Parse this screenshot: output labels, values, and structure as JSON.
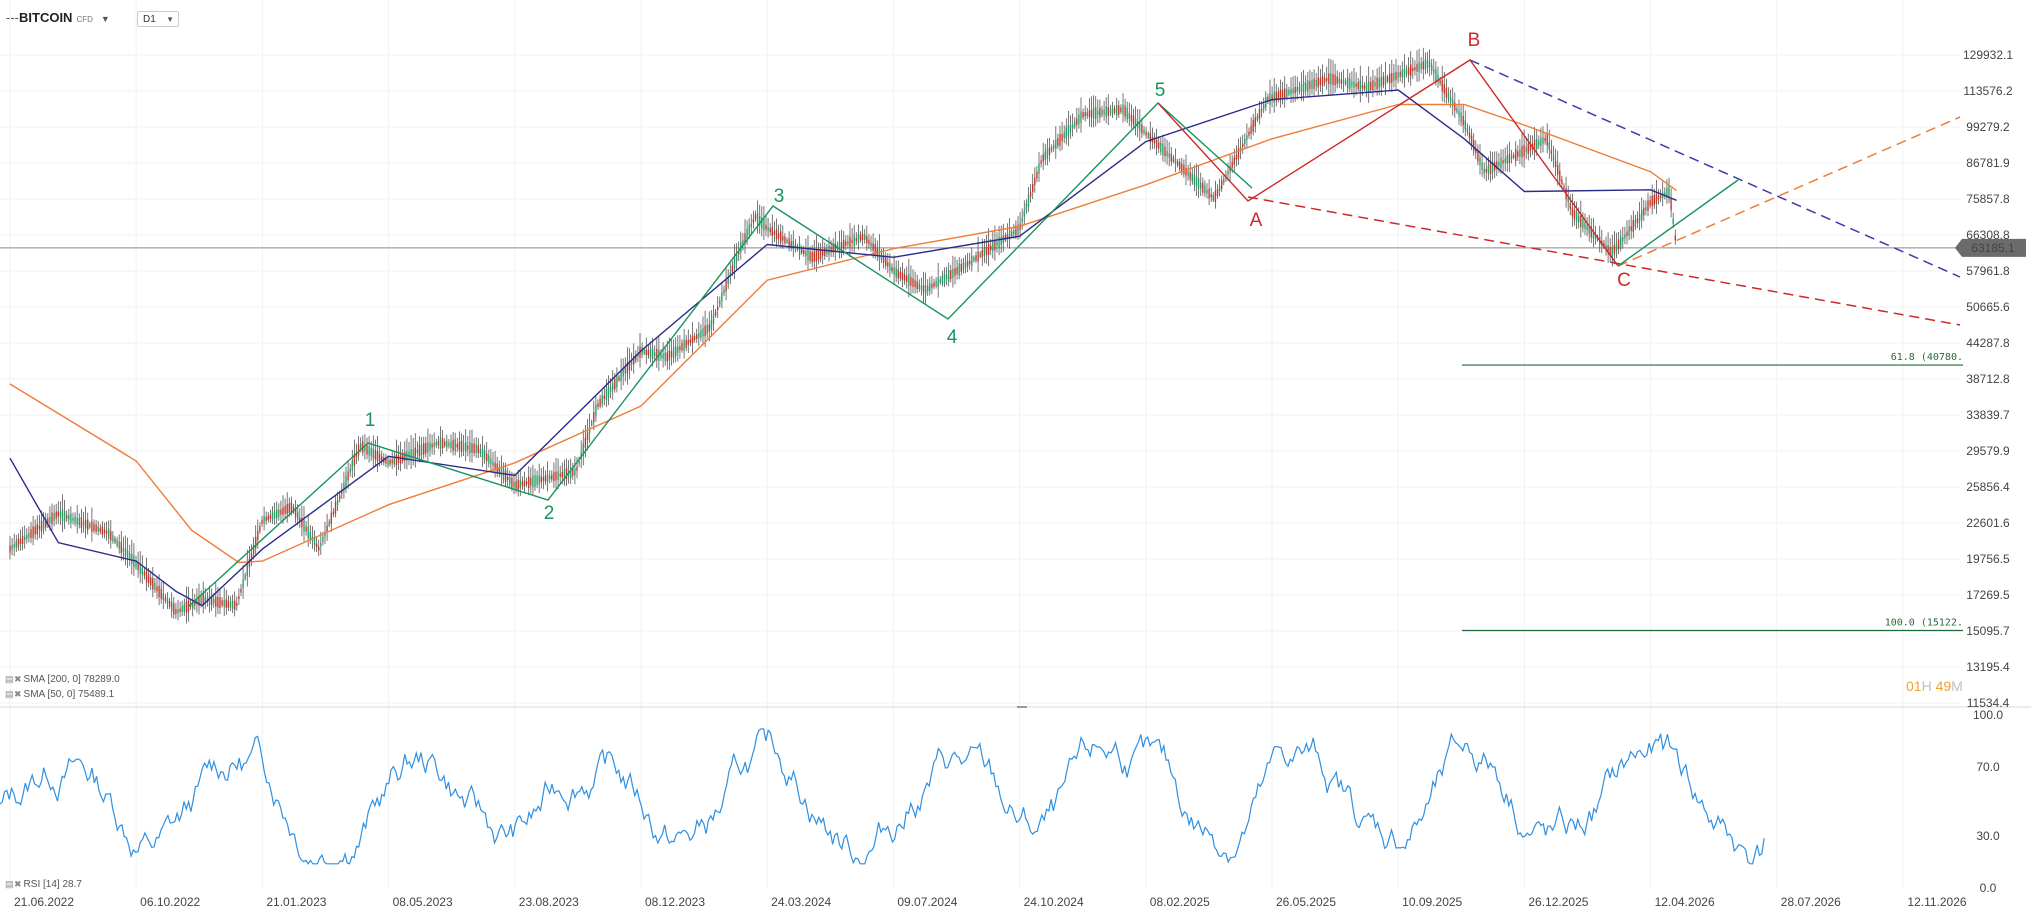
{
  "header": {
    "symbol_dash": "---",
    "symbol": "BITCOIN",
    "symbol_badge": "CFD",
    "symbol_caret": "▼",
    "timeframe": "D1",
    "timeframe_caret": "▼"
  },
  "legend": {
    "sma200": "SMA [200, 0] 78289.0",
    "sma50": "SMA [50, 0] 75489.1",
    "rsi": "RSI [14] 28.7",
    "icons": "▤ ✖"
  },
  "countdown": {
    "h": "01",
    "h_unit": "H",
    "m": "49",
    "m_unit": "M"
  },
  "colors": {
    "price_candle": "#3a3a3a",
    "sma200": "#f07c3a",
    "sma50": "#2b2b8a",
    "wave_impulse": "#17955a",
    "wave_corrective": "#cc2a2a",
    "channel_blue": "#3a3ab0",
    "channel_orange": "#f07c3a",
    "channel_red": "#cc2a2a",
    "fib_line": "#1f6a3a",
    "rsi": "#2f8fe0",
    "current_price_tag": "#6b6b6b"
  },
  "chart_data": {
    "type": "line",
    "title": "BITCOIN CFD D1",
    "x_ticks": [
      "21.06.2022",
      "06.10.2022",
      "21.01.2023",
      "08.05.2023",
      "23.08.2023",
      "08.12.2023",
      "24.03.2024",
      "09.07.2024",
      "24.10.2024",
      "08.02.2025",
      "26.05.2025",
      "10.09.2025",
      "26.12.2025",
      "12.04.2026",
      "28.07.2026",
      "12.11.2026"
    ],
    "y_ticks": [
      "129932.1",
      "113576.2",
      "99279.2",
      "86781.9",
      "75857.8",
      "66308.8",
      "57961.8",
      "50665.6",
      "44287.8",
      "38712.8",
      "33839.7",
      "29579.9",
      "25856.4",
      "22601.6",
      "19756.5",
      "17269.5",
      "15095.7",
      "13195.4",
      "11534.4"
    ],
    "y_scale": "log",
    "ylim": [
      11534.4,
      129932.1
    ],
    "current_price": "63185.1",
    "price_series": {
      "name": "BITCOIN",
      "x": [
        "21.06.2022",
        "01.08.2022",
        "12.09.2022",
        "06.10.2022",
        "09.11.2022",
        "01.12.2022",
        "30.12.2022",
        "21.01.2023",
        "15.02.2023",
        "10.03.2023",
        "14.04.2023",
        "08.05.2023",
        "20.06.2023",
        "23.07.2023",
        "23.08.2023",
        "14.10.2023",
        "01.11.2023",
        "08.12.2023",
        "30.12.2023",
        "05.02.2024",
        "01.03.2024",
        "14.03.2024",
        "24.03.2024",
        "01.05.2024",
        "14.06.2024",
        "09.07.2024",
        "05.08.2024",
        "01.09.2024",
        "24.10.2024",
        "12.11.2024",
        "17.12.2024",
        "20.01.2025",
        "08.02.2025",
        "07.04.2025",
        "22.05.2025",
        "14.07.2025",
        "14.08.2025",
        "06.10.2025",
        "05.11.2025",
        "22.11.2025",
        "14.01.2026",
        "05.02.2026",
        "10.03.2026",
        "01.04.2026",
        "12.04.2026",
        "28.04.2026",
        "04.05.2026"
      ],
      "values": [
        20500,
        23400,
        21800,
        19400,
        16200,
        17000,
        16600,
        22800,
        24000,
        20500,
        30200,
        28300,
        30500,
        29800,
        26000,
        27400,
        35000,
        43000,
        42000,
        47000,
        63000,
        71000,
        68000,
        61000,
        66000,
        58000,
        54000,
        58000,
        68000,
        88000,
        104000,
        106000,
        97000,
        76000,
        110000,
        119000,
        115000,
        126000,
        101000,
        84000,
        95000,
        72000,
        62000,
        70000,
        75000,
        78000,
        63185.1
      ]
    },
    "sma_series": [
      {
        "name": "SMA [200, 0] 78289.0",
        "x": [
          "21.06.2022",
          "06.10.2022",
          "22.11.2022",
          "01.01.2023",
          "21.01.2023",
          "08.05.2023",
          "23.08.2023",
          "08.12.2023",
          "24.03.2024",
          "09.07.2024",
          "24.10.2024",
          "08.02.2025",
          "26.05.2025",
          "10.09.2025",
          "05.11.2025",
          "26.12.2025",
          "12.04.2026",
          "04.05.2026"
        ],
        "values": [
          38000,
          28500,
          22000,
          19500,
          19600,
          24200,
          28300,
          35000,
          56000,
          63000,
          68500,
          80000,
          95000,
          108000,
          108000,
          100000,
          84000,
          78289
        ]
      },
      {
        "name": "SMA [50, 0] 75489.1",
        "x": [
          "21.06.2022",
          "01.08.2022",
          "06.10.2022",
          "09.11.2022",
          "01.12.2022",
          "21.01.2023",
          "08.05.2023",
          "23.08.2023",
          "08.12.2023",
          "24.03.2024",
          "09.07.2024",
          "24.10.2024",
          "08.02.2025",
          "26.05.2025",
          "10.09.2025",
          "05.11.2025",
          "26.12.2025",
          "12.04.2026",
          "04.05.2026"
        ],
        "values": [
          28800,
          21000,
          19600,
          17500,
          16600,
          20500,
          29000,
          27000,
          43000,
          64000,
          61000,
          66000,
          94000,
          110000,
          114000,
          95000,
          78000,
          78500,
          75489.1
        ]
      }
    ],
    "rsi_series": {
      "name": "RSI [14] 28.7",
      "ylim": [
        0,
        100
      ],
      "y_ticks": [
        "100.0",
        "70.0",
        "30.0",
        "0.0"
      ],
      "last": 28.7
    },
    "wave_labels": [
      "1",
      "2",
      "3",
      "4",
      "5",
      "A",
      "B",
      "C"
    ],
    "fibonacci": [
      {
        "label": "61.8 (40780.",
        "value": 40780
      },
      {
        "label": "100.0 (15122.",
        "value": 15122
      }
    ]
  }
}
